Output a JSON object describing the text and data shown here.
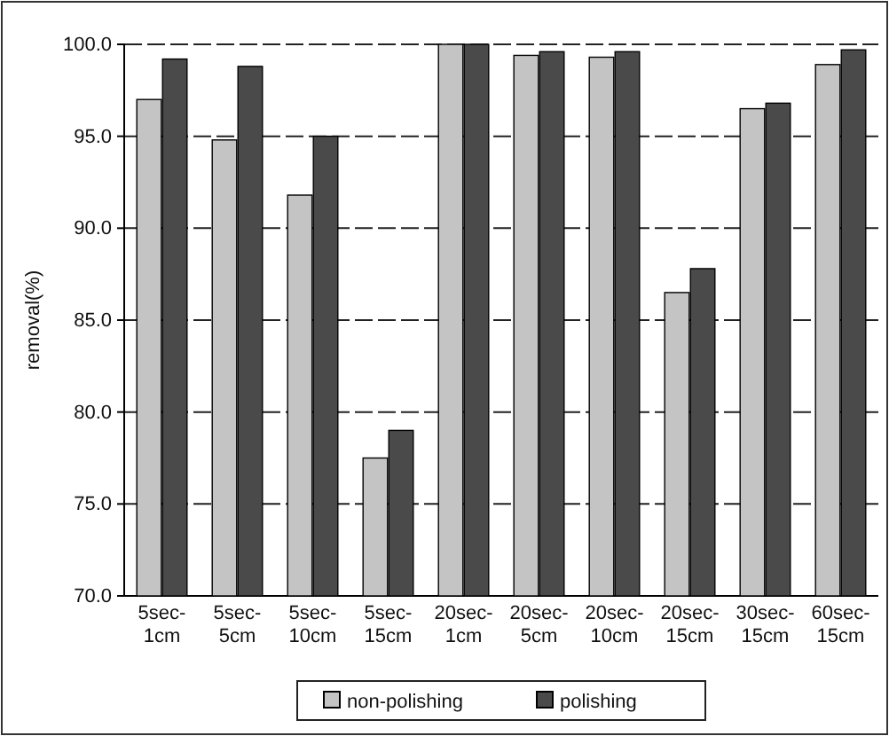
{
  "chart_data": {
    "type": "bar",
    "ylabel": "removal(%)",
    "categories": [
      "5sec-1cm",
      "5sec-5cm",
      "5sec-10cm",
      "5sec-15cm",
      "20sec-1cm",
      "20sec-5cm",
      "20sec-10cm",
      "20sec-15cm",
      "30sec-15cm",
      "60sec-15cm"
    ],
    "series": [
      {
        "name": "non-polishing",
        "color": "#c4c4c4",
        "values": [
          97.0,
          94.8,
          91.8,
          77.5,
          100.0,
          99.4,
          99.3,
          86.5,
          96.5,
          98.9
        ]
      },
      {
        "name": "polishing",
        "color": "#4a4a4a",
        "values": [
          99.2,
          98.8,
          95.0,
          79.0,
          100.0,
          99.6,
          99.6,
          87.8,
          96.8,
          99.7
        ]
      }
    ],
    "ylim": [
      70,
      100
    ],
    "yticks": [
      {
        "value": 70,
        "label": "70.0"
      },
      {
        "value": 75,
        "label": "75.0"
      },
      {
        "value": 80,
        "label": "80.0"
      },
      {
        "value": 85,
        "label": "85.0"
      },
      {
        "value": 90,
        "label": "90.0"
      },
      {
        "value": 95,
        "label": "95.0"
      },
      {
        "value": 100,
        "label": "100.0"
      }
    ],
    "grid": "y",
    "legend": "bottom"
  }
}
